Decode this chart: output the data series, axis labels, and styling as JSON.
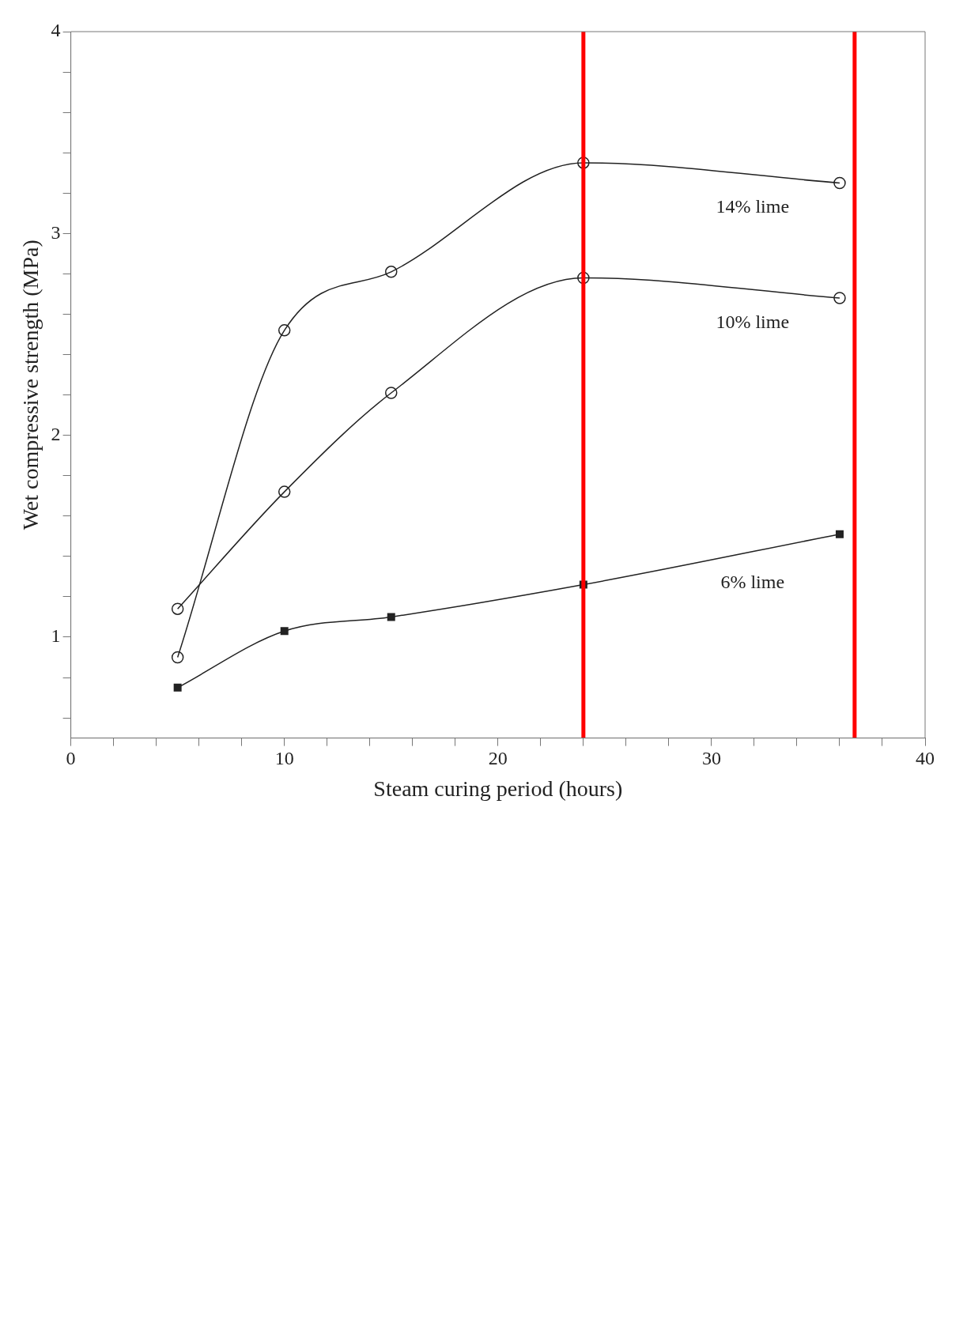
{
  "chart_data": {
    "type": "line",
    "xlabel": "Steam curing period (hours)",
    "ylabel": "Wet compressive strength (MPa)",
    "xlim": [
      0,
      40
    ],
    "xticks": [
      0,
      {
        "value": 2,
        "label": null
      },
      {
        "value": 4,
        "label": null
      },
      {
        "value": 6,
        "label": null
      },
      {
        "value": 8,
        "label": null
      },
      10,
      {
        "value": 12,
        "label": null
      },
      {
        "value": 14,
        "label": null
      },
      {
        "value": 16,
        "label": null
      },
      {
        "value": 18,
        "label": null
      },
      20,
      {
        "value": 22,
        "label": null
      },
      {
        "value": 24,
        "label": null
      },
      {
        "value": 26,
        "label": null
      },
      {
        "value": 28,
        "label": null
      },
      30,
      {
        "value": 32,
        "label": null
      },
      {
        "value": 34,
        "label": null
      },
      {
        "value": 36,
        "label": null
      },
      {
        "value": 38,
        "label": null
      },
      40
    ],
    "ylim": [
      0.5,
      4
    ],
    "yticks": [
      {
        "value": 0.6,
        "label": null
      },
      {
        "value": 0.8,
        "label": null
      },
      1,
      {
        "value": 1.2,
        "label": null
      },
      {
        "value": 1.4,
        "label": null
      },
      {
        "value": 1.6,
        "label": null
      },
      {
        "value": 1.8,
        "label": null
      },
      2,
      {
        "value": 2.2,
        "label": null
      },
      {
        "value": 2.4,
        "label": null
      },
      {
        "value": 2.6,
        "label": null
      },
      {
        "value": 2.8,
        "label": null
      },
      3,
      {
        "value": 3.2,
        "label": null
      },
      {
        "value": 3.4,
        "label": null
      },
      {
        "value": 3.6,
        "label": null
      },
      {
        "value": 3.8,
        "label": null
      },
      4
    ],
    "x": [
      5,
      10,
      15,
      24,
      36
    ],
    "grid": false,
    "legend": false,
    "line_style": "solid",
    "series": [
      {
        "name": "14% lime",
        "color": "#222222",
        "marker": "circle",
        "values": [
          0.9,
          2.52,
          2.81,
          3.35,
          3.25
        ]
      },
      {
        "name": "10% lime",
        "color": "#222222",
        "marker": "circle",
        "values": [
          1.14,
          1.72,
          2.21,
          2.78,
          2.68
        ]
      },
      {
        "name": "6% lime",
        "color": "#222222",
        "marker": "square",
        "values": [
          0.75,
          1.03,
          1.1,
          1.26,
          1.51
        ]
      }
    ],
    "ref_lines": [
      {
        "axis": "x",
        "value": 24,
        "color": "#ff0000"
      },
      {
        "axis": "x",
        "value": 36.7,
        "color": "#ff0000"
      }
    ]
  }
}
